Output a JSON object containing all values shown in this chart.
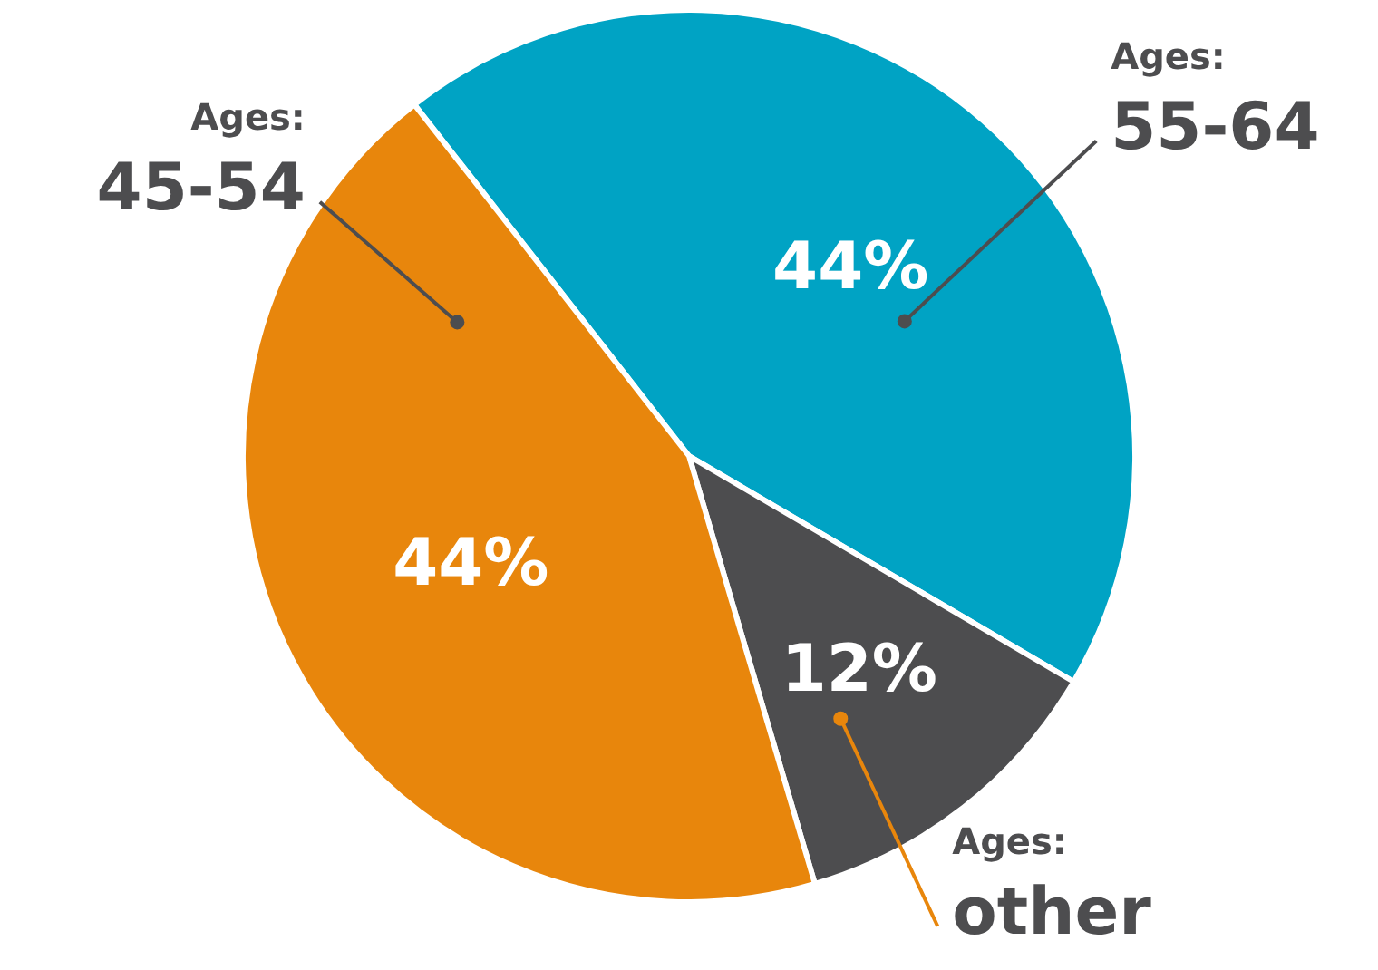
{
  "chart_data": {
    "type": "pie",
    "categories": [
      "Ages:\n55-64",
      "Ages:\nother",
      "Ages:\n45-54"
    ],
    "values": [
      44,
      12,
      44
    ],
    "colors": [
      "#00a3c4",
      "#4d4d4f",
      "#e8860c"
    ],
    "value_labels": [
      "44%",
      "12%",
      "44%"
    ],
    "legend": false
  }
}
